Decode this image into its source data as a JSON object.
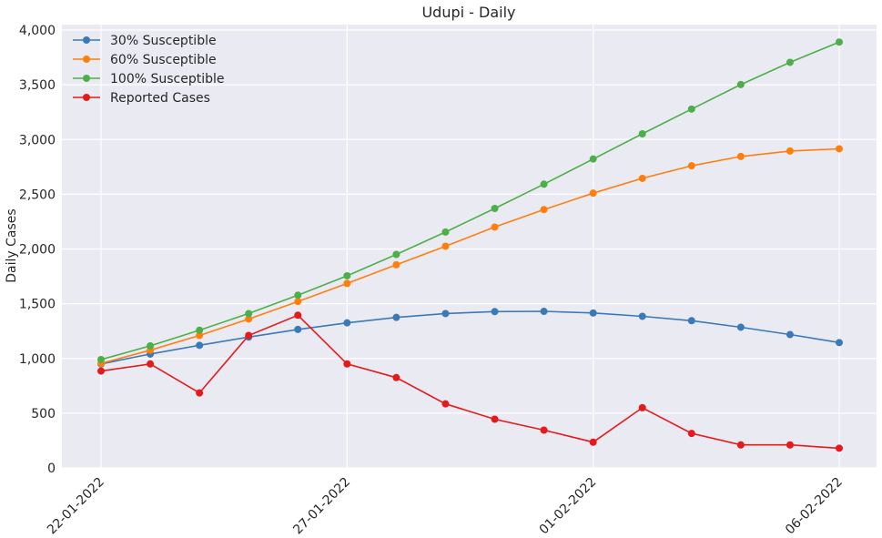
{
  "chart_data": {
    "type": "line",
    "title": "Udupi - Daily",
    "xlabel": "",
    "ylabel": "Daily Cases",
    "x": [
      "22-01-2022",
      "23-01-2022",
      "24-01-2022",
      "25-01-2022",
      "26-01-2022",
      "27-01-2022",
      "28-01-2022",
      "29-01-2022",
      "30-01-2022",
      "31-01-2022",
      "01-02-2022",
      "02-02-2022",
      "03-02-2022",
      "04-02-2022",
      "05-02-2022",
      "06-02-2022"
    ],
    "x_tick_labels": [
      "22-01-2022",
      "27-01-2022",
      "01-02-2022",
      "06-02-2022"
    ],
    "x_tick_indices": [
      0,
      5,
      10,
      15
    ],
    "ylim": [
      0,
      4000
    ],
    "y_ticks": [
      0,
      500,
      1000,
      1500,
      2000,
      2500,
      3000,
      3500,
      4000
    ],
    "y_tick_labels": [
      "0",
      "500",
      "1,000",
      "1,500",
      "2,000",
      "2,500",
      "3,000",
      "3,500",
      "4,000"
    ],
    "grid": true,
    "legend_position": "top-left",
    "series": [
      {
        "name": "30% Susceptible",
        "color": "#3a7ab7",
        "values": [
          950,
          1040,
          1120,
          1195,
          1265,
          1325,
          1375,
          1410,
          1428,
          1430,
          1415,
          1385,
          1345,
          1285,
          1218,
          1145
        ]
      },
      {
        "name": "60% Susceptible",
        "color": "#ff7f0e",
        "values": [
          955,
          1075,
          1210,
          1360,
          1520,
          1685,
          1855,
          2025,
          2200,
          2360,
          2510,
          2645,
          2760,
          2845,
          2895,
          2915
        ]
      },
      {
        "name": "100% Susceptible",
        "color": "#4daf4a",
        "values": [
          990,
          1115,
          1258,
          1410,
          1578,
          1755,
          1950,
          2155,
          2370,
          2592,
          2822,
          3052,
          3278,
          3502,
          3705,
          3890
        ]
      },
      {
        "name": "Reported Cases",
        "color": "#e41a1c",
        "values": [
          885,
          950,
          685,
          1210,
          1395,
          950,
          825,
          585,
          445,
          345,
          235,
          550,
          315,
          210,
          210,
          180
        ]
      }
    ]
  }
}
